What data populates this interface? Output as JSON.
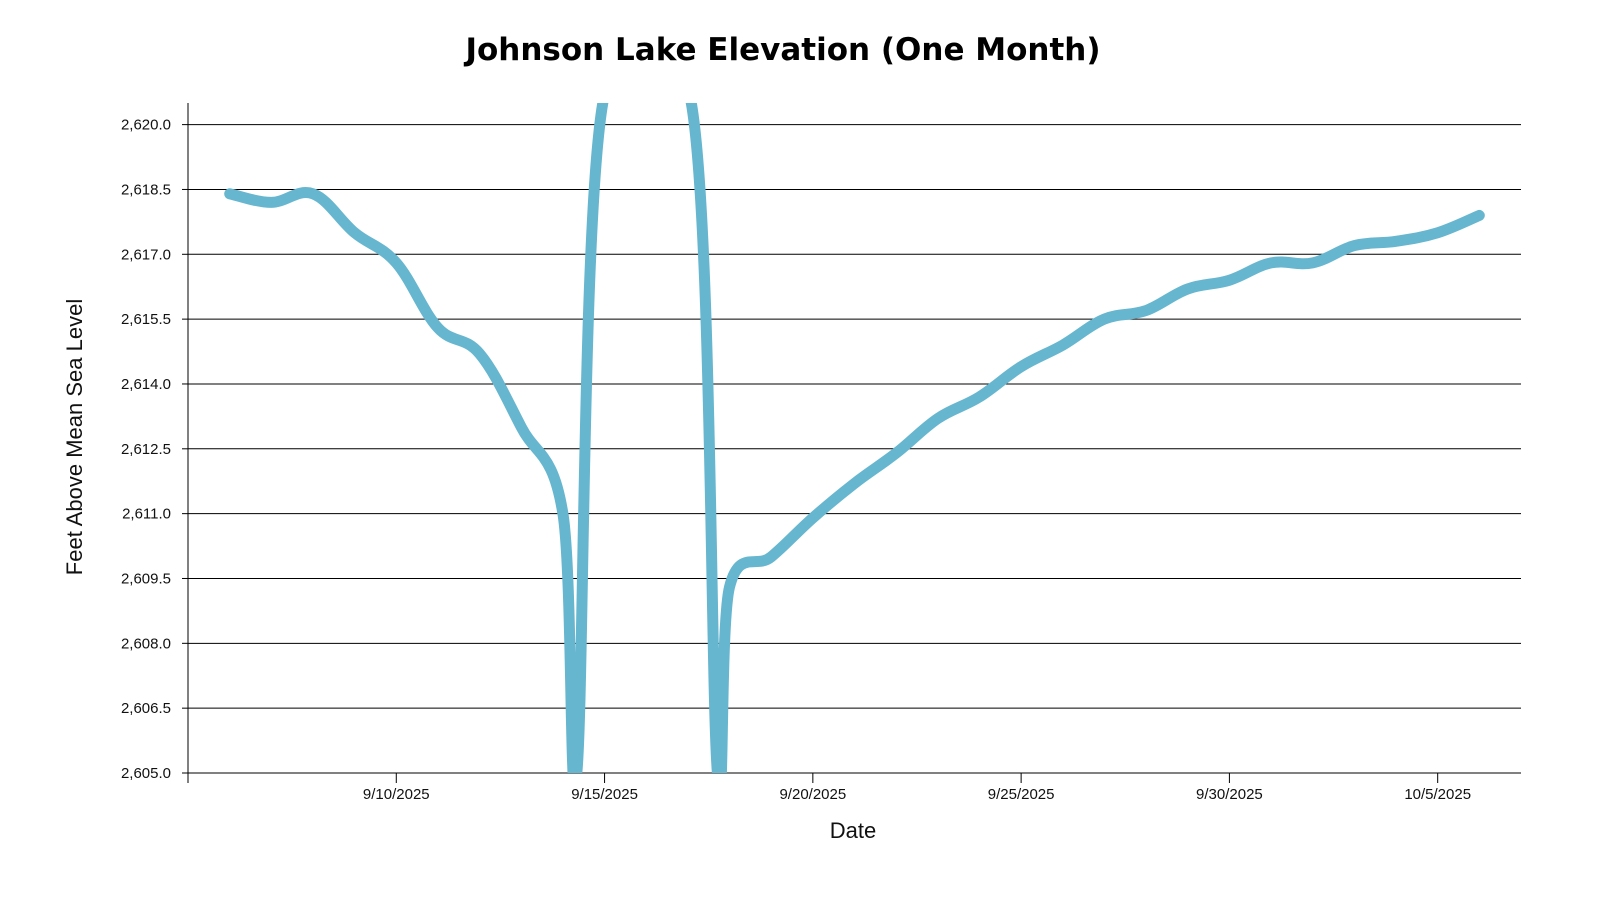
{
  "chart_data": {
    "type": "line",
    "title": "Johnson Lake Elevation (One Month)",
    "xlabel": "Date",
    "ylabel": "Feet Above Mean Sea Level",
    "ylim": [
      2605.0,
      2620.5
    ],
    "y_ticks": [
      2605.0,
      2606.5,
      2608.0,
      2609.5,
      2611.0,
      2612.5,
      2614.0,
      2615.5,
      2617.0,
      2618.5,
      2620.0
    ],
    "y_tick_labels": [
      "2,605.0",
      "2,606.5",
      "2,608.0",
      "2,609.5",
      "2,611.0",
      "2,612.5",
      "2,614.0",
      "2,615.5",
      "2,617.0",
      "2,618.5",
      "2,620.0"
    ],
    "xlim": [
      "2025-09-05",
      "2025-10-07"
    ],
    "x_ticks": [
      "2025-09-10",
      "2025-09-15",
      "2025-09-20",
      "2025-09-25",
      "2025-09-30",
      "2025-10-05"
    ],
    "x_tick_labels": [
      "9/10/2025",
      "9/15/2025",
      "9/20/2025",
      "9/25/2025",
      "9/30/2025",
      "10/5/2025"
    ],
    "grid": "horizontal",
    "line_color": "#66b6cf",
    "series": [
      {
        "x": [
          "2025-09-06",
          "2025-09-07",
          "2025-09-08",
          "2025-09-09",
          "2025-09-10",
          "2025-09-11",
          "2025-09-12",
          "2025-09-13",
          "2025-09-14",
          "2025-09-14T08:00",
          "2025-09-14T23:00",
          "2025-09-17T02:00",
          "2025-09-17T17:00",
          "2025-09-18",
          "2025-09-19",
          "2025-09-20",
          "2025-09-21",
          "2025-09-22",
          "2025-09-23",
          "2025-09-24",
          "2025-09-25",
          "2025-09-26",
          "2025-09-27",
          "2025-09-28",
          "2025-09-29",
          "2025-09-30",
          "2025-10-01",
          "2025-10-02",
          "2025-10-03",
          "2025-10-04",
          "2025-10-05",
          "2025-10-06"
        ],
        "y": [
          2618.4,
          2618.2,
          2618.4,
          2617.5,
          2616.8,
          2615.3,
          2614.7,
          2613.0,
          2611.0,
          2605.0,
          2620.5,
          2620.5,
          2605.0,
          2609.3,
          2610.0,
          2610.9,
          2611.7,
          2612.4,
          2613.2,
          2613.7,
          2614.4,
          2614.9,
          2615.5,
          2615.7,
          2616.2,
          2616.4,
          2616.8,
          2616.8,
          2617.2,
          2617.3,
          2617.5,
          2617.9
        ]
      }
    ]
  }
}
